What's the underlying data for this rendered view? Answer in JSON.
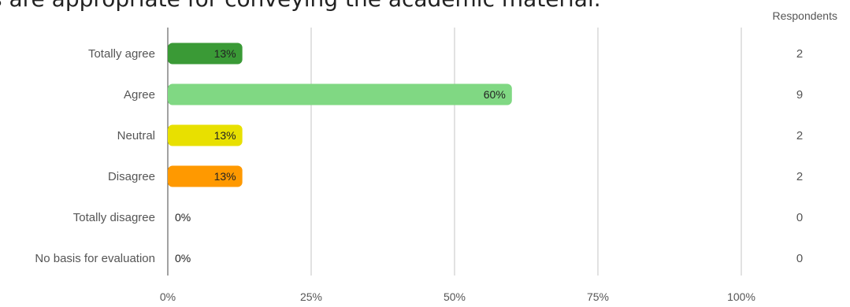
{
  "chart_data": {
    "type": "bar",
    "orientation": "horizontal",
    "title": "s are appropriate for conveying the academic material.",
    "categories": [
      "Totally agree",
      "Agree",
      "Neutral",
      "Disagree",
      "Totally disagree",
      "No basis for evaluation"
    ],
    "values": [
      13,
      60,
      13,
      13,
      0,
      0
    ],
    "value_labels": [
      "13%",
      "60%",
      "13%",
      "13%",
      "0%",
      "0%"
    ],
    "respondents": [
      2,
      9,
      2,
      2,
      0,
      0
    ],
    "respondents_header": "Respondents",
    "colors": [
      "#3a9a36",
      "#80d883",
      "#e8e000",
      "#ff9900",
      "#cccccc",
      "#cccccc"
    ],
    "x_ticks": [
      "0%",
      "25%",
      "50%",
      "75%",
      "100%"
    ],
    "xlim": [
      0,
      100
    ],
    "grid": true
  }
}
